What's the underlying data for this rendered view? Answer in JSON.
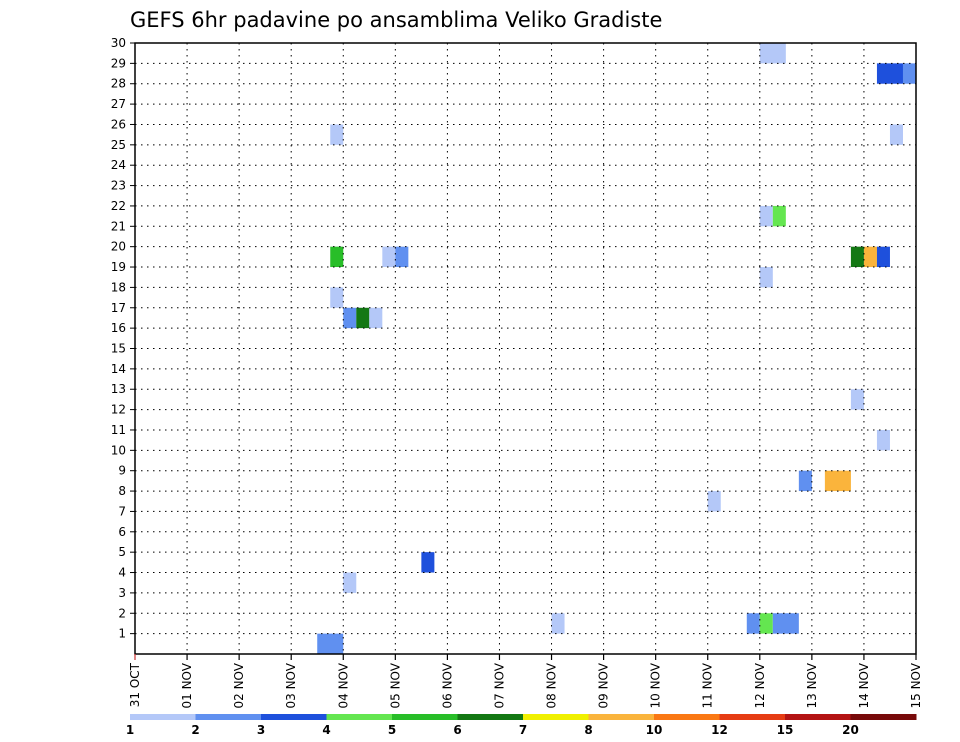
{
  "chart_data": {
    "type": "heatmap",
    "title": "GEFS 6hr padavine po ansamblima Veliko Gradiste",
    "x_tick_labels": [
      "31 OCT",
      "01 NOV",
      "02 NOV",
      "03 NOV",
      "04 NOV",
      "05 NOV",
      "06 NOV",
      "07 NOV",
      "08 NOV",
      "09 NOV",
      "10 NOV",
      "11 NOV",
      "12 NOV",
      "13 NOV",
      "14 NOV",
      "15 NOV"
    ],
    "xlim": [
      0,
      15
    ],
    "ylim": [
      0,
      30
    ],
    "y_ticks": [
      1,
      2,
      3,
      4,
      5,
      6,
      7,
      8,
      9,
      10,
      11,
      12,
      13,
      14,
      15,
      16,
      17,
      18,
      19,
      20,
      21,
      22,
      23,
      24,
      25,
      26,
      27,
      28,
      29,
      30
    ],
    "grid": true,
    "colorbar": {
      "colors": [
        "#b4c8f8",
        "#6090f0",
        "#1e50dc",
        "#64e650",
        "#28be28",
        "#147814",
        "#f0f000",
        "#fab43c",
        "#fa7814",
        "#e63c14",
        "#b41414",
        "#780a0a"
      ],
      "labels": [
        "1",
        "2",
        "3",
        "4",
        "5",
        "6",
        "7",
        "8",
        "10",
        "12",
        "15",
        "20"
      ]
    },
    "cells": [
      {
        "day": 12.0,
        "member": 30,
        "dur": 0.5,
        "color": "#b4c8f8"
      },
      {
        "day": 14.25,
        "member": 29,
        "dur": 0.5,
        "color": "#1e50dc"
      },
      {
        "day": 14.75,
        "member": 29,
        "dur": 0.25,
        "color": "#6090f0"
      },
      {
        "day": 3.75,
        "member": 26,
        "dur": 0.25,
        "color": "#b4c8f8"
      },
      {
        "day": 14.5,
        "member": 26,
        "dur": 0.25,
        "color": "#b4c8f8"
      },
      {
        "day": 12.0,
        "member": 22,
        "dur": 0.25,
        "color": "#b4c8f8"
      },
      {
        "day": 12.25,
        "member": 22,
        "dur": 0.25,
        "color": "#64e650"
      },
      {
        "day": 3.75,
        "member": 20,
        "dur": 0.25,
        "color": "#28be28"
      },
      {
        "day": 4.75,
        "member": 20,
        "dur": 0.25,
        "color": "#b4c8f8"
      },
      {
        "day": 5.0,
        "member": 20,
        "dur": 0.25,
        "color": "#6090f0"
      },
      {
        "day": 13.75,
        "member": 20,
        "dur": 0.25,
        "color": "#147814"
      },
      {
        "day": 14.0,
        "member": 20,
        "dur": 0.25,
        "color": "#fab43c"
      },
      {
        "day": 14.25,
        "member": 20,
        "dur": 0.25,
        "color": "#1e50dc"
      },
      {
        "day": 12.0,
        "member": 19,
        "dur": 0.25,
        "color": "#b4c8f8"
      },
      {
        "day": 3.75,
        "member": 18,
        "dur": 0.25,
        "color": "#b4c8f8"
      },
      {
        "day": 4.0,
        "member": 17,
        "dur": 0.25,
        "color": "#6090f0"
      },
      {
        "day": 4.25,
        "member": 17,
        "dur": 0.25,
        "color": "#147814"
      },
      {
        "day": 4.5,
        "member": 17,
        "dur": 0.25,
        "color": "#b4c8f8"
      },
      {
        "day": 13.75,
        "member": 13,
        "dur": 0.25,
        "color": "#b4c8f8"
      },
      {
        "day": 14.25,
        "member": 11,
        "dur": 0.25,
        "color": "#b4c8f8"
      },
      {
        "day": 12.75,
        "member": 9,
        "dur": 0.25,
        "color": "#6090f0"
      },
      {
        "day": 13.25,
        "member": 9,
        "dur": 0.5,
        "color": "#fab43c"
      },
      {
        "day": 11.0,
        "member": 8,
        "dur": 0.25,
        "color": "#b4c8f8"
      },
      {
        "day": 5.5,
        "member": 5,
        "dur": 0.25,
        "color": "#1e50dc"
      },
      {
        "day": 4.0,
        "member": 4,
        "dur": 0.25,
        "color": "#b4c8f8"
      },
      {
        "day": 8.0,
        "member": 2,
        "dur": 0.25,
        "color": "#b4c8f8"
      },
      {
        "day": 11.75,
        "member": 2,
        "dur": 0.25,
        "color": "#6090f0"
      },
      {
        "day": 12.0,
        "member": 2,
        "dur": 0.25,
        "color": "#64e650"
      },
      {
        "day": 12.25,
        "member": 2,
        "dur": 0.5,
        "color": "#6090f0"
      },
      {
        "day": 3.5,
        "member": 1,
        "dur": 0.5,
        "color": "#6090f0"
      }
    ]
  }
}
